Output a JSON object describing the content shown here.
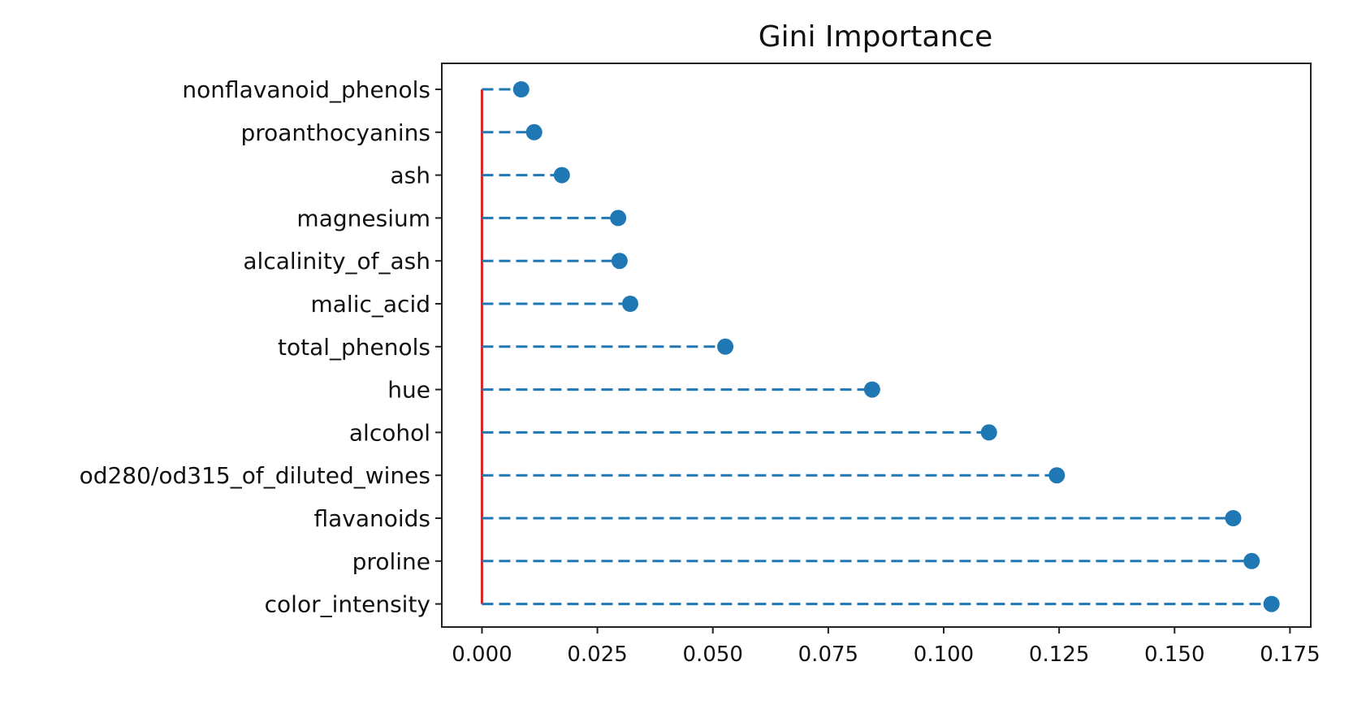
{
  "chart_data": {
    "type": "lollipop",
    "title": "Gini Importance",
    "xlabel": "",
    "ylabel": "",
    "xlim": [
      -0.0087,
      0.1795
    ],
    "xticks": [
      "0.000",
      "0.025",
      "0.050",
      "0.075",
      "0.100",
      "0.125",
      "0.150",
      "0.175"
    ],
    "xtick_values": [
      0,
      0.025,
      0.05,
      0.075,
      0.1,
      0.125,
      0.15,
      0.175
    ],
    "categories": [
      "nonflavanoid_phenols",
      "proanthocyanins",
      "ash",
      "magnesium",
      "alcalinity_of_ash",
      "malic_acid",
      "total_phenols",
      "hue",
      "alcohol",
      "od280/od315_of_diluted_wines",
      "flavanoids",
      "proline",
      "color_intensity"
    ],
    "values": [
      0.0085,
      0.0113,
      0.0173,
      0.0295,
      0.0298,
      0.0321,
      0.0527,
      0.0845,
      0.1098,
      0.1245,
      0.1627,
      0.1667,
      0.171
    ],
    "baseline": 0,
    "colors": {
      "stem": "#1f77b4",
      "marker": "#1f77b4",
      "baseline": "#d62728",
      "axes": "#222222"
    },
    "grid": false,
    "legend": "none"
  }
}
